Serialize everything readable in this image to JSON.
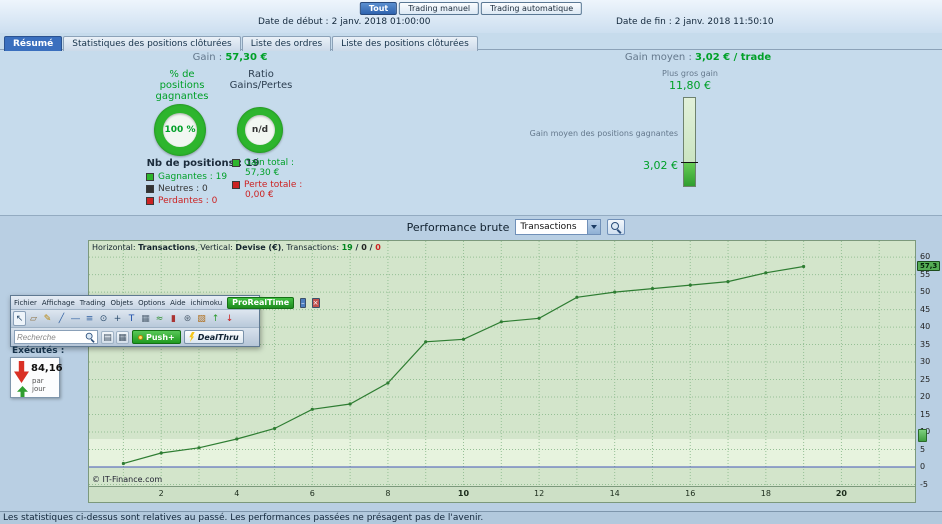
{
  "colors": {
    "accent_blue": "#3a6fbe",
    "positive_green": "#00a028",
    "negative_red": "#cc2222",
    "chart_line_green": "#2e7d32",
    "plot_background": "#d3e5cb"
  },
  "topbar": {
    "buttons": [
      {
        "label": "Tout",
        "active": true
      },
      {
        "label": "Trading manuel",
        "active": false
      },
      {
        "label": "Trading automatique",
        "active": false
      }
    ],
    "date_start_label": "Date de début :",
    "date_start_value": "2 janv. 2018 01:00:00",
    "date_end_label": "Date de fin :",
    "date_end_value": "2 janv. 2018 11:50:10"
  },
  "tabs": [
    {
      "label": "Résumé",
      "active": true
    },
    {
      "label": "Statistiques des positions clôturées",
      "active": false
    },
    {
      "label": "Liste des ordres",
      "active": false
    },
    {
      "label": "Liste des positions clôturées",
      "active": false
    }
  ],
  "summary": {
    "gain_label": "Gain :",
    "gain_value": "57,30 €",
    "pct_label": "% de positions gagnantes",
    "ratio_label": "Ratio Gains/Pertes",
    "pct_value": "100 %",
    "ratio_value": "n/d",
    "nb_label": "Nb de positions : 19",
    "legend": [
      {
        "label": "Gagnantes : 19",
        "swatch": "#2db52d",
        "text": "#00a028"
      },
      {
        "label": "Neutres : 0",
        "swatch": "#333333",
        "text": "#333333"
      },
      {
        "label": "Perdantes : 0",
        "swatch": "#cc2222",
        "text": "#cc2222"
      }
    ],
    "gain_total_label": "Gain total :",
    "gain_total_value": "57,30 €",
    "perte_label": "Perte totale :",
    "perte_value": "0,00 €"
  },
  "gain_moyen": {
    "label": "Gain moyen :",
    "value": "3,02 € / trade",
    "biggest_label": "Plus gros gain",
    "biggest_value": "11,80 €",
    "avg_note": "Gain moyen des positions gagnantes",
    "avg_value": "3,02 €"
  },
  "performance": {
    "label": "Performance brute",
    "select_value": "Transactions"
  },
  "plot_header": {
    "parts": [
      {
        "t": "Horizontal: ",
        "c": ""
      },
      {
        "t": "Transactions",
        "c": "b"
      },
      {
        "t": ", Vertical: ",
        "c": ""
      },
      {
        "t": "Devise (€)",
        "c": "b"
      },
      {
        "t": ", Transactions: ",
        "c": ""
      },
      {
        "t": "19",
        "c": "b win"
      },
      {
        "t": " / ",
        "c": "b"
      },
      {
        "t": "0",
        "c": "b neu"
      },
      {
        "t": " / ",
        "c": "b"
      },
      {
        "t": "0",
        "c": "b los"
      }
    ]
  },
  "chart_data": {
    "type": "line",
    "title": "Performance brute",
    "xlabel": "Transactions",
    "ylabel": "Devise (€)",
    "x": [
      1,
      2,
      3,
      4,
      5,
      6,
      7,
      8,
      9,
      10,
      11,
      12,
      13,
      14,
      15,
      16,
      17,
      18,
      19
    ],
    "values": [
      1.0,
      4.0,
      5.5,
      8.0,
      11.0,
      16.5,
      18.0,
      24.0,
      35.8,
      36.5,
      41.5,
      42.5,
      48.5,
      50.0,
      51.0,
      52.0,
      53.0,
      55.5,
      57.3
    ],
    "x_ticks": [
      2,
      4,
      6,
      8,
      10,
      12,
      14,
      16,
      18,
      20
    ],
    "y_ticks": [
      60,
      55,
      50,
      45,
      40,
      35,
      30,
      25,
      20,
      15,
      10,
      5,
      0,
      -5
    ],
    "xlim": [
      0.09,
      22.0
    ],
    "ylim": [
      -6.0,
      64.6
    ],
    "band": [
      0,
      8
    ],
    "zero_line": 0,
    "grid": true,
    "legend_position": "none",
    "line_color": "#2e7d32",
    "current_value_label": "57,3",
    "copyright": "© IT-Finance.com"
  },
  "toolbar_window": {
    "menus": [
      "Fichier",
      "Affichage",
      "Trading",
      "Objets",
      "Options",
      "Aide",
      "ichimoku"
    ],
    "brand": "ProRealTime",
    "window_buttons": [
      {
        "name": "minimize-button",
        "glyph": "–"
      },
      {
        "name": "close-icon",
        "glyph": "×"
      }
    ],
    "icons": [
      {
        "name": "pointer-icon",
        "glyph": "↖",
        "color": "#2f4f6f"
      },
      {
        "name": "eraser-icon",
        "glyph": "▱",
        "color": "#8a6a3a"
      },
      {
        "name": "pencil-icon",
        "glyph": "✎",
        "color": "#b8860b"
      },
      {
        "name": "trendline-icon",
        "glyph": "╱",
        "color": "#2f5fa0"
      },
      {
        "name": "horizontal-line-icon",
        "glyph": "―",
        "color": "#2f5fa0"
      },
      {
        "name": "parallel-lines-icon",
        "glyph": "≡",
        "color": "#2f5fa0"
      },
      {
        "name": "zoom-icon",
        "glyph": "⊙",
        "color": "#2f4f6f"
      },
      {
        "name": "crosshair-icon",
        "glyph": "+",
        "color": "#2f4f6f"
      },
      {
        "name": "text-icon",
        "glyph": "T",
        "color": "#1f4faa"
      },
      {
        "name": "chart-grid-icon",
        "glyph": "▦",
        "color": "#556677"
      },
      {
        "name": "indicator-icon",
        "glyph": "≈",
        "color": "#2f8f2f"
      },
      {
        "name": "candlestick-icon",
        "glyph": "▮",
        "color": "#aa3333"
      },
      {
        "name": "settings-icon",
        "glyph": "⊛",
        "color": "#556677"
      },
      {
        "name": "palette-icon",
        "glyph": "▨",
        "color": "#b07020"
      },
      {
        "name": "buy-arrow-icon",
        "glyph": "↑",
        "color": "#2a9a2a"
      },
      {
        "name": "sell-arrow-icon",
        "glyph": "↓",
        "color": "#cc2222"
      }
    ],
    "search_placeholder": "Recherche",
    "search_icons": [
      {
        "name": "list-view-icon",
        "glyph": "▤"
      },
      {
        "name": "grid-view-icon",
        "glyph": "▦"
      }
    ],
    "push_label": "Push+",
    "dealthru_label": "DealThru"
  },
  "ticker": {
    "executions_label": "Exécutés :",
    "value": "84,16",
    "unit": "par jour"
  },
  "footer": {
    "disclaimer": "Les statistiques ci-dessus sont relatives au passé. Les performances passées ne présagent pas de l'avenir."
  }
}
